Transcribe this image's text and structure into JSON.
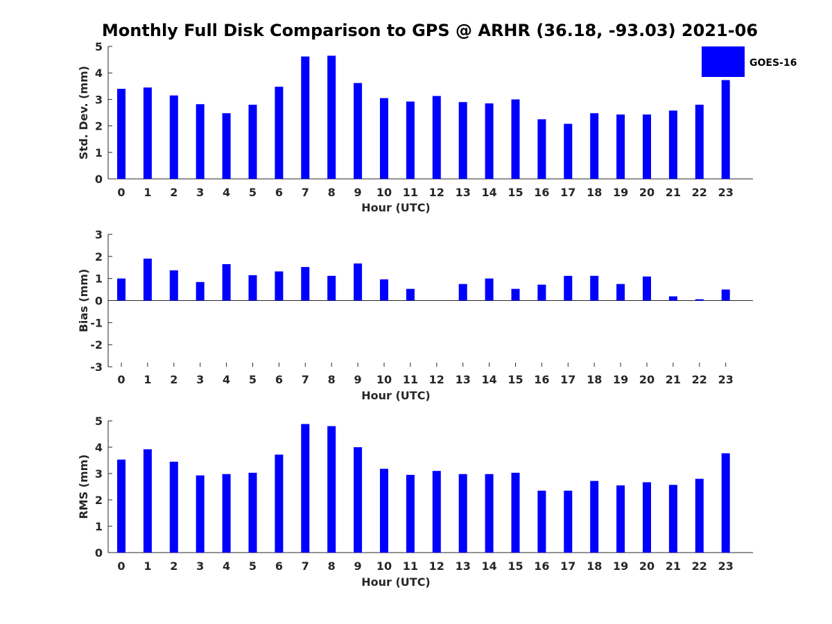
{
  "title": "Monthly Full Disk Comparison to GPS @ ARHR (36.18, -93.03) 2021-06",
  "legend": {
    "label": "GOES-16",
    "color": "#0000ff",
    "placement": "top-right"
  },
  "chart_data": [
    {
      "type": "bar",
      "ylabel": "Std. Dev. (mm)",
      "xlabel": "Hour (UTC)",
      "ylim": [
        0,
        5
      ],
      "yticks": [
        "0",
        "1",
        "2",
        "3",
        "4",
        "5"
      ],
      "categories": [
        "0",
        "1",
        "2",
        "3",
        "4",
        "5",
        "6",
        "7",
        "8",
        "9",
        "10",
        "11",
        "12",
        "13",
        "14",
        "15",
        "16",
        "17",
        "18",
        "19",
        "20",
        "21",
        "22",
        "23"
      ],
      "series": [
        {
          "name": "GOES-16",
          "color": "#0000ff",
          "values": [
            3.4,
            3.45,
            3.15,
            2.82,
            2.48,
            2.8,
            3.48,
            4.62,
            4.65,
            3.62,
            3.05,
            2.92,
            3.13,
            2.9,
            2.85,
            3.0,
            2.25,
            2.08,
            2.48,
            2.43,
            2.43,
            2.58,
            2.8,
            3.73
          ]
        }
      ]
    },
    {
      "type": "bar",
      "ylabel": "Bias (mm)",
      "xlabel": "Hour (UTC)",
      "ylim": [
        -3,
        3
      ],
      "yticks": [
        "-3",
        "-2",
        "-1",
        "0",
        "1",
        "2",
        "3"
      ],
      "categories": [
        "0",
        "1",
        "2",
        "3",
        "4",
        "5",
        "6",
        "7",
        "8",
        "9",
        "10",
        "11",
        "12",
        "13",
        "14",
        "15",
        "16",
        "17",
        "18",
        "19",
        "20",
        "21",
        "22",
        "23"
      ],
      "series": [
        {
          "name": "GOES-16",
          "color": "#0000ff",
          "values": [
            1.0,
            1.9,
            1.37,
            0.84,
            1.65,
            1.15,
            1.32,
            1.52,
            1.12,
            1.68,
            0.96,
            0.53,
            0.0,
            0.75,
            1.0,
            0.53,
            0.72,
            1.12,
            1.12,
            0.75,
            1.09,
            0.19,
            0.06,
            0.5
          ]
        }
      ]
    },
    {
      "type": "bar",
      "ylabel": "RMS (mm)",
      "xlabel": "Hour (UTC)",
      "ylim": [
        0,
        5
      ],
      "yticks": [
        "0",
        "1",
        "2",
        "3",
        "4",
        "5"
      ],
      "categories": [
        "0",
        "1",
        "2",
        "3",
        "4",
        "5",
        "6",
        "7",
        "8",
        "9",
        "10",
        "11",
        "12",
        "13",
        "14",
        "15",
        "16",
        "17",
        "18",
        "19",
        "20",
        "21",
        "22",
        "23"
      ],
      "series": [
        {
          "name": "GOES-16",
          "color": "#0000ff",
          "values": [
            3.53,
            3.92,
            3.45,
            2.93,
            2.98,
            3.03,
            3.72,
            4.88,
            4.8,
            4.0,
            3.18,
            2.95,
            3.1,
            2.98,
            2.98,
            3.03,
            2.35,
            2.35,
            2.72,
            2.55,
            2.67,
            2.57,
            2.8,
            3.77
          ]
        }
      ]
    }
  ]
}
